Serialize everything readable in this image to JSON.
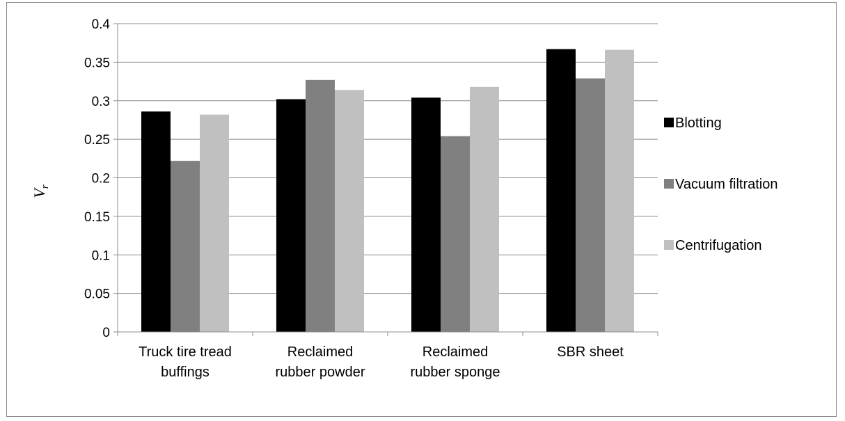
{
  "chart_data": {
    "type": "bar",
    "categories": [
      [
        "Truck tire tread",
        "buffings"
      ],
      [
        "Reclaimed",
        "rubber powder"
      ],
      [
        "Reclaimed",
        "rubber sponge"
      ],
      [
        "SBR sheet"
      ]
    ],
    "series": [
      {
        "name": "Blotting",
        "color": "#000000",
        "values": [
          0.286,
          0.302,
          0.304,
          0.367
        ]
      },
      {
        "name": "Vacuum filtration",
        "color": "#808080",
        "values": [
          0.222,
          0.327,
          0.254,
          0.329
        ]
      },
      {
        "name": "Centrifugation",
        "color": "#c0c0c0",
        "values": [
          0.282,
          0.314,
          0.318,
          0.366
        ]
      }
    ],
    "yticks": [
      "0",
      "0.05",
      "0.1",
      "0.15",
      "0.2",
      "0.25",
      "0.3",
      "0.35",
      "0.4"
    ],
    "ylim": [
      0,
      0.4
    ],
    "ylabel": {
      "main": "V",
      "sub": "r"
    },
    "xlabel": "",
    "title": "",
    "grid": "horizontal",
    "legend_position": "right"
  }
}
